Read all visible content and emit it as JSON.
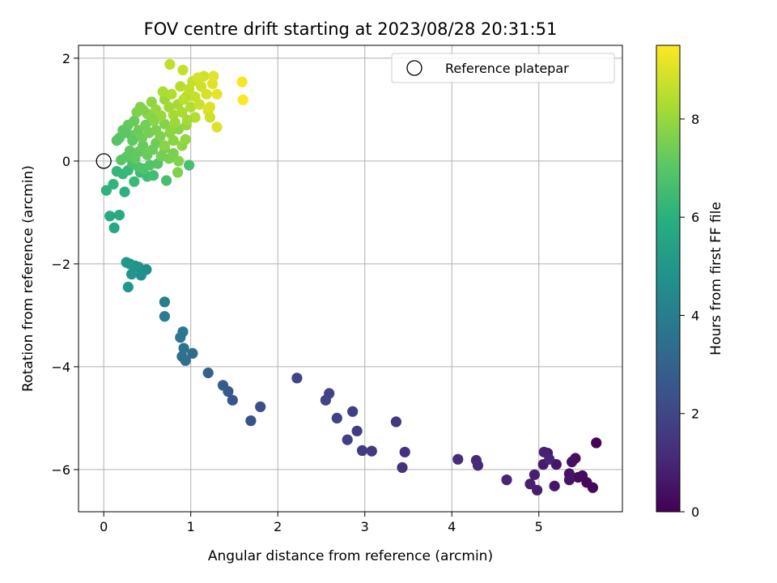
{
  "chart_data": {
    "type": "scatter",
    "title": "FOV centre drift starting at 2023/08/28 20:31:51",
    "xlabel": "Angular distance from reference (arcmin)",
    "ylabel": "Rotation from reference (arcmin)",
    "xlim": [
      -0.29,
      5.96
    ],
    "ylim": [
      -6.82,
      2.25
    ],
    "xticks": [
      0,
      1,
      2,
      3,
      4,
      5
    ],
    "yticks": [
      -6,
      -4,
      -2,
      0,
      2
    ],
    "grid": true,
    "legend": {
      "placement": "top-right",
      "label": "Reference platepar",
      "marker": "hollow-circle"
    },
    "reference_point": {
      "x": 0,
      "y": 0
    },
    "colorbar": {
      "label": "Hours from first FF file",
      "colormap": "viridis",
      "range": [
        0,
        9.5
      ],
      "ticks": [
        0,
        2,
        4,
        6,
        8
      ]
    },
    "points": [
      {
        "x": 5.66,
        "y": -5.48,
        "t": 0.1
      },
      {
        "x": 5.62,
        "y": -6.35,
        "t": 0.15
      },
      {
        "x": 5.55,
        "y": -6.25,
        "t": 0.2
      },
      {
        "x": 5.5,
        "y": -6.12,
        "t": 0.25
      },
      {
        "x": 5.45,
        "y": -6.15,
        "t": 0.3
      },
      {
        "x": 5.42,
        "y": -5.78,
        "t": 0.35
      },
      {
        "x": 5.38,
        "y": -5.85,
        "t": 0.4
      },
      {
        "x": 5.35,
        "y": -6.08,
        "t": 0.45
      },
      {
        "x": 5.35,
        "y": -6.2,
        "t": 0.5
      },
      {
        "x": 5.18,
        "y": -6.32,
        "t": 0.55
      },
      {
        "x": 5.2,
        "y": -5.9,
        "t": 0.6
      },
      {
        "x": 5.1,
        "y": -5.68,
        "t": 0.65
      },
      {
        "x": 5.05,
        "y": -5.9,
        "t": 0.7
      },
      {
        "x": 4.98,
        "y": -6.4,
        "t": 0.75
      },
      {
        "x": 4.95,
        "y": -6.1,
        "t": 0.8
      },
      {
        "x": 4.9,
        "y": -6.28,
        "t": 0.85
      },
      {
        "x": 5.06,
        "y": -5.66,
        "t": 0.9
      },
      {
        "x": 5.12,
        "y": -5.8,
        "t": 0.95
      },
      {
        "x": 4.63,
        "y": -6.2,
        "t": 1.0
      },
      {
        "x": 4.3,
        "y": -5.92,
        "t": 1.1
      },
      {
        "x": 4.28,
        "y": -5.82,
        "t": 1.15
      },
      {
        "x": 4.07,
        "y": -5.8,
        "t": 1.2
      },
      {
        "x": 3.46,
        "y": -5.66,
        "t": 1.35
      },
      {
        "x": 3.43,
        "y": -5.96,
        "t": 1.4
      },
      {
        "x": 3.36,
        "y": -5.07,
        "t": 1.5
      },
      {
        "x": 3.08,
        "y": -5.64,
        "t": 1.6
      },
      {
        "x": 2.97,
        "y": -5.63,
        "t": 1.65
      },
      {
        "x": 2.91,
        "y": -5.25,
        "t": 1.7
      },
      {
        "x": 2.86,
        "y": -4.87,
        "t": 1.75
      },
      {
        "x": 2.8,
        "y": -5.42,
        "t": 1.8
      },
      {
        "x": 2.68,
        "y": -5.0,
        "t": 1.85
      },
      {
        "x": 2.59,
        "y": -4.52,
        "t": 1.9
      },
      {
        "x": 2.55,
        "y": -4.65,
        "t": 1.95
      },
      {
        "x": 2.22,
        "y": -4.22,
        "t": 2.0
      },
      {
        "x": 1.8,
        "y": -4.78,
        "t": 2.3
      },
      {
        "x": 1.69,
        "y": -5.05,
        "t": 2.4
      },
      {
        "x": 1.48,
        "y": -4.65,
        "t": 2.55
      },
      {
        "x": 1.43,
        "y": -4.48,
        "t": 2.65
      },
      {
        "x": 1.37,
        "y": -4.36,
        "t": 2.75
      },
      {
        "x": 1.2,
        "y": -4.12,
        "t": 2.95
      },
      {
        "x": 1.02,
        "y": -3.74,
        "t": 3.3
      },
      {
        "x": 0.94,
        "y": -3.88,
        "t": 3.4
      },
      {
        "x": 0.9,
        "y": -3.8,
        "t": 3.5
      },
      {
        "x": 0.92,
        "y": -3.64,
        "t": 3.6
      },
      {
        "x": 0.88,
        "y": -3.43,
        "t": 3.7
      },
      {
        "x": 0.91,
        "y": -3.32,
        "t": 3.8
      },
      {
        "x": 0.7,
        "y": -3.02,
        "t": 4.0
      },
      {
        "x": 0.7,
        "y": -2.74,
        "t": 4.1
      },
      {
        "x": 0.49,
        "y": -2.11,
        "t": 4.6
      },
      {
        "x": 0.43,
        "y": -2.22,
        "t": 4.7
      },
      {
        "x": 0.4,
        "y": -2.06,
        "t": 4.8
      },
      {
        "x": 0.36,
        "y": -2.04,
        "t": 4.9
      },
      {
        "x": 0.32,
        "y": -2.2,
        "t": 4.95
      },
      {
        "x": 0.3,
        "y": -2.0,
        "t": 5.0
      },
      {
        "x": 0.26,
        "y": -1.97,
        "t": 5.1
      },
      {
        "x": 0.28,
        "y": -2.45,
        "t": 5.05
      },
      {
        "x": 0.12,
        "y": -1.3,
        "t": 5.6
      },
      {
        "x": 0.07,
        "y": -1.07,
        "t": 5.7
      },
      {
        "x": 0.18,
        "y": -1.05,
        "t": 5.8
      },
      {
        "x": 0.24,
        "y": -0.6,
        "t": 6.0
      },
      {
        "x": 0.03,
        "y": -0.57,
        "t": 6.1
      },
      {
        "x": 0.11,
        "y": -0.45,
        "t": 6.2
      },
      {
        "x": 0.15,
        "y": -0.2,
        "t": 6.3
      },
      {
        "x": 0.22,
        "y": -0.25,
        "t": 6.35
      },
      {
        "x": 0.28,
        "y": -0.18,
        "t": 6.4
      },
      {
        "x": 0.35,
        "y": -0.4,
        "t": 6.45
      },
      {
        "x": 0.42,
        "y": -0.22,
        "t": 6.5
      },
      {
        "x": 0.5,
        "y": -0.3,
        "t": 6.55
      },
      {
        "x": 0.57,
        "y": -0.28,
        "t": 6.6
      },
      {
        "x": 0.72,
        "y": -0.38,
        "t": 6.65
      },
      {
        "x": 0.98,
        "y": -0.08,
        "t": 6.7
      },
      {
        "x": 0.33,
        "y": -0.05,
        "t": 6.75
      },
      {
        "x": 0.4,
        "y": -0.12,
        "t": 6.8
      },
      {
        "x": 0.46,
        "y": -0.15,
        "t": 6.85
      },
      {
        "x": 0.53,
        "y": -0.08,
        "t": 6.9
      },
      {
        "x": 0.62,
        "y": -0.05,
        "t": 6.95
      },
      {
        "x": 0.2,
        "y": 0.02,
        "t": 7.0
      },
      {
        "x": 0.26,
        "y": 0.08,
        "t": 7.05
      },
      {
        "x": 0.3,
        "y": 0.2,
        "t": 7.1
      },
      {
        "x": 0.36,
        "y": 0.05,
        "t": 7.15
      },
      {
        "x": 0.4,
        "y": 0.18,
        "t": 7.2
      },
      {
        "x": 0.45,
        "y": 0.3,
        "t": 7.25
      },
      {
        "x": 0.5,
        "y": 0.12,
        "t": 7.3
      },
      {
        "x": 0.56,
        "y": 0.22,
        "t": 7.35
      },
      {
        "x": 0.6,
        "y": 0.35,
        "t": 7.4
      },
      {
        "x": 0.66,
        "y": 0.1,
        "t": 7.45
      },
      {
        "x": 0.7,
        "y": 0.25,
        "t": 7.5
      },
      {
        "x": 0.75,
        "y": 0.05,
        "t": 7.55
      },
      {
        "x": 0.8,
        "y": 0.15,
        "t": 7.6
      },
      {
        "x": 0.85,
        "y": -0.22,
        "t": 7.65
      },
      {
        "x": 0.86,
        "y": 0.0,
        "t": 7.7
      },
      {
        "x": 0.18,
        "y": 0.45,
        "t": 7.0
      },
      {
        "x": 0.22,
        "y": 0.6,
        "t": 7.1
      },
      {
        "x": 0.28,
        "y": 0.7,
        "t": 7.2
      },
      {
        "x": 0.32,
        "y": 0.5,
        "t": 7.25
      },
      {
        "x": 0.35,
        "y": 0.78,
        "t": 7.3
      },
      {
        "x": 0.4,
        "y": 0.6,
        "t": 7.35
      },
      {
        "x": 0.44,
        "y": 0.45,
        "t": 7.4
      },
      {
        "x": 0.48,
        "y": 0.7,
        "t": 7.45
      },
      {
        "x": 0.52,
        "y": 0.55,
        "t": 7.5
      },
      {
        "x": 0.55,
        "y": 0.85,
        "t": 7.55
      },
      {
        "x": 0.6,
        "y": 0.6,
        "t": 7.6
      },
      {
        "x": 0.65,
        "y": 0.48,
        "t": 7.65
      },
      {
        "x": 0.7,
        "y": 0.72,
        "t": 7.7
      },
      {
        "x": 0.76,
        "y": 0.55,
        "t": 7.75
      },
      {
        "x": 0.8,
        "y": 0.4,
        "t": 7.8
      },
      {
        "x": 0.86,
        "y": 0.62,
        "t": 7.85
      },
      {
        "x": 0.9,
        "y": 0.3,
        "t": 7.9
      },
      {
        "x": 0.94,
        "y": 0.42,
        "t": 7.95
      },
      {
        "x": 0.95,
        "y": 0.7,
        "t": 8.0
      },
      {
        "x": 0.38,
        "y": 0.95,
        "t": 7.6
      },
      {
        "x": 0.42,
        "y": 1.05,
        "t": 7.7
      },
      {
        "x": 0.5,
        "y": 0.92,
        "t": 7.8
      },
      {
        "x": 0.55,
        "y": 1.15,
        "t": 7.9
      },
      {
        "x": 0.6,
        "y": 1.0,
        "t": 8.0
      },
      {
        "x": 0.66,
        "y": 0.88,
        "t": 8.05
      },
      {
        "x": 0.7,
        "y": 1.2,
        "t": 8.1
      },
      {
        "x": 0.75,
        "y": 1.05,
        "t": 8.15
      },
      {
        "x": 0.8,
        "y": 0.9,
        "t": 8.2
      },
      {
        "x": 0.85,
        "y": 1.1,
        "t": 8.25
      },
      {
        "x": 0.9,
        "y": 0.95,
        "t": 8.3
      },
      {
        "x": 0.95,
        "y": 1.25,
        "t": 8.35
      },
      {
        "x": 1.0,
        "y": 1.05,
        "t": 8.4
      },
      {
        "x": 1.05,
        "y": 0.85,
        "t": 8.45
      },
      {
        "x": 0.68,
        "y": 1.35,
        "t": 8.3
      },
      {
        "x": 0.78,
        "y": 1.3,
        "t": 8.4
      },
      {
        "x": 0.88,
        "y": 1.45,
        "t": 8.5
      },
      {
        "x": 0.92,
        "y": 1.2,
        "t": 8.55
      },
      {
        "x": 0.98,
        "y": 1.4,
        "t": 8.6
      },
      {
        "x": 1.02,
        "y": 1.55,
        "t": 8.65
      },
      {
        "x": 1.05,
        "y": 1.25,
        "t": 8.7
      },
      {
        "x": 1.1,
        "y": 1.1,
        "t": 8.75
      },
      {
        "x": 1.12,
        "y": 1.45,
        "t": 8.8
      },
      {
        "x": 1.15,
        "y": 1.65,
        "t": 8.85
      },
      {
        "x": 1.18,
        "y": 1.3,
        "t": 8.9
      },
      {
        "x": 1.2,
        "y": 0.98,
        "t": 8.95
      },
      {
        "x": 1.22,
        "y": 1.05,
        "t": 9.0
      },
      {
        "x": 1.25,
        "y": 1.5,
        "t": 9.05
      },
      {
        "x": 1.26,
        "y": 1.65,
        "t": 9.1
      },
      {
        "x": 1.3,
        "y": 1.3,
        "t": 9.15
      },
      {
        "x": 1.3,
        "y": 0.66,
        "t": 9.0
      },
      {
        "x": 1.22,
        "y": 0.85,
        "t": 8.8
      },
      {
        "x": 0.76,
        "y": 1.88,
        "t": 8.6
      },
      {
        "x": 0.91,
        "y": 1.77,
        "t": 8.7
      },
      {
        "x": 0.78,
        "y": 0.6,
        "t": 7.9
      },
      {
        "x": 0.7,
        "y": 0.3,
        "t": 7.8
      },
      {
        "x": 1.59,
        "y": 1.54,
        "t": 9.4
      },
      {
        "x": 1.6,
        "y": 1.19,
        "t": 9.45
      },
      {
        "x": 0.45,
        "y": 1.0,
        "t": 7.65
      },
      {
        "x": 0.58,
        "y": 0.78,
        "t": 7.8
      },
      {
        "x": 0.33,
        "y": 0.4,
        "t": 7.15
      },
      {
        "x": 0.25,
        "y": 0.55,
        "t": 7.05
      },
      {
        "x": 0.15,
        "y": 0.4,
        "t": 6.95
      },
      {
        "x": 0.82,
        "y": 0.75,
        "t": 8.1
      },
      {
        "x": 1.08,
        "y": 1.62,
        "t": 8.9
      },
      {
        "x": 0.96,
        "y": 0.8,
        "t": 8.2
      }
    ]
  }
}
